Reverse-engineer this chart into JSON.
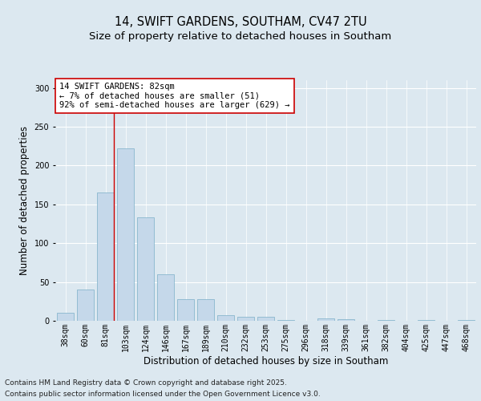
{
  "title_line1": "14, SWIFT GARDENS, SOUTHAM, CV47 2TU",
  "title_line2": "Size of property relative to detached houses in Southam",
  "xlabel": "Distribution of detached houses by size in Southam",
  "ylabel": "Number of detached properties",
  "categories": [
    "38sqm",
    "60sqm",
    "81sqm",
    "103sqm",
    "124sqm",
    "146sqm",
    "167sqm",
    "189sqm",
    "210sqm",
    "232sqm",
    "253sqm",
    "275sqm",
    "296sqm",
    "318sqm",
    "339sqm",
    "361sqm",
    "382sqm",
    "404sqm",
    "425sqm",
    "447sqm",
    "468sqm"
  ],
  "values": [
    10,
    40,
    165,
    222,
    133,
    60,
    28,
    28,
    7,
    5,
    5,
    1,
    0,
    3,
    2,
    0,
    1,
    0,
    1,
    0,
    1
  ],
  "bar_color": "#c5d8ea",
  "bar_edge_color": "#7aafc8",
  "vline_x_index": 2,
  "vline_color": "#cc0000",
  "annotation_text": "14 SWIFT GARDENS: 82sqm\n← 7% of detached houses are smaller (51)\n92% of semi-detached houses are larger (629) →",
  "annotation_box_color": "#ffffff",
  "annotation_box_edge": "#cc0000",
  "annotation_fontsize": 7.5,
  "ylim": [
    0,
    310
  ],
  "yticks": [
    0,
    50,
    100,
    150,
    200,
    250,
    300
  ],
  "fig_bg_color": "#dce8f0",
  "plot_bg_color": "#dce8f0",
  "footer_line1": "Contains HM Land Registry data © Crown copyright and database right 2025.",
  "footer_line2": "Contains public sector information licensed under the Open Government Licence v3.0.",
  "title_fontsize": 10.5,
  "subtitle_fontsize": 9.5,
  "axis_label_fontsize": 8.5,
  "tick_fontsize": 7,
  "footer_fontsize": 6.5
}
